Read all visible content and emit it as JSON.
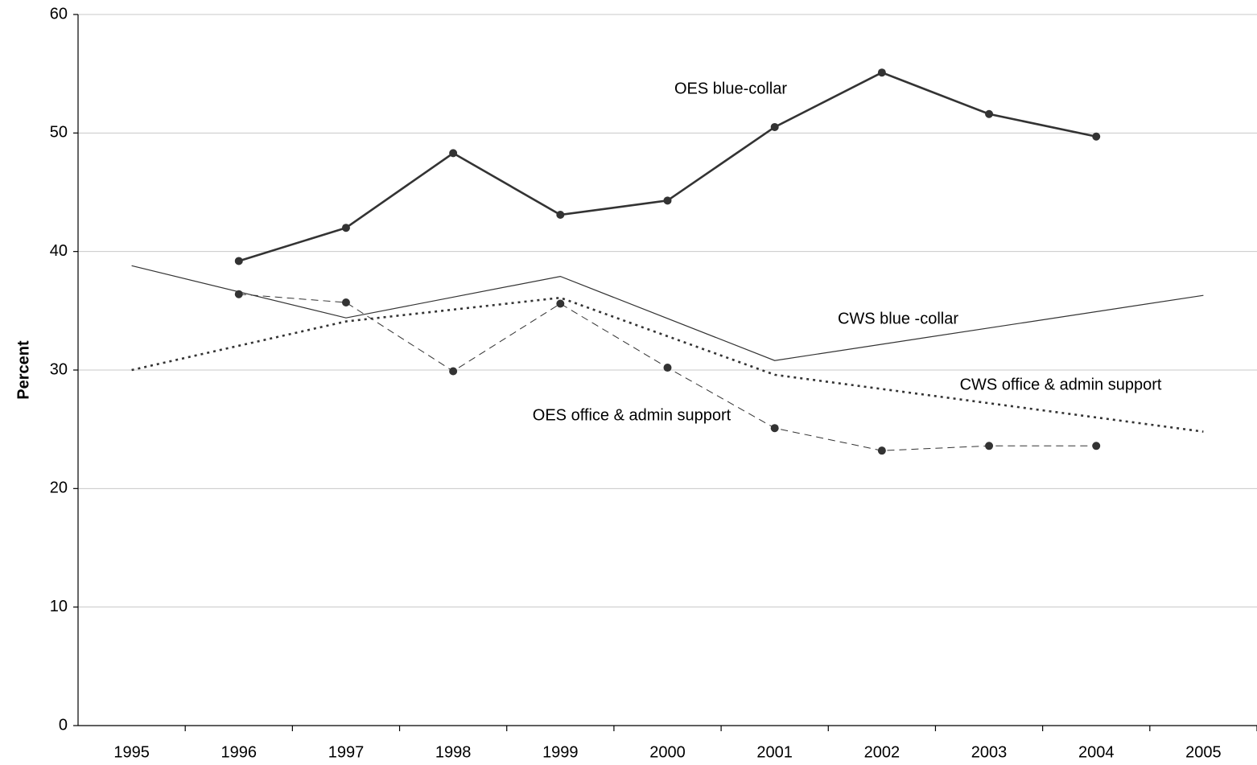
{
  "chart_data": {
    "type": "line",
    "y_label": "Percent",
    "xlim": [
      1994.5,
      2005.5
    ],
    "xticks": [
      1995,
      1996,
      1997,
      1998,
      1999,
      2000,
      2001,
      2002,
      2003,
      2004,
      2005
    ],
    "ylim": [
      0,
      60
    ],
    "yticks": [
      0,
      10,
      20,
      30,
      40,
      50,
      60
    ],
    "grid": true,
    "series": [
      {
        "name": "OES blue-collar",
        "color": "#333333",
        "style": "solid-bold",
        "markers": true,
        "x": [
          1996,
          1997,
          1998,
          1999,
          2000,
          2001,
          2002,
          2003,
          2004
        ],
        "values": [
          39.2,
          42.0,
          48.3,
          43.1,
          44.3,
          50.5,
          55.1,
          51.6,
          49.7
        ]
      },
      {
        "name": "CWS blue -collar",
        "color": "#333333",
        "style": "solid-thin",
        "markers": false,
        "x": [
          1995,
          1997,
          1999,
          2001,
          2005
        ],
        "values": [
          38.8,
          34.4,
          37.9,
          30.8,
          36.3
        ]
      },
      {
        "name": "CWS office & admin support",
        "color": "#333333",
        "style": "dotted",
        "markers": false,
        "x": [
          1995,
          1997,
          1999,
          2001,
          2005
        ],
        "values": [
          30.0,
          34.1,
          36.1,
          29.6,
          24.8
        ]
      },
      {
        "name": "OES office & admin support",
        "color": "#333333",
        "style": "dashed",
        "markers": true,
        "x": [
          1996,
          1997,
          1998,
          1999,
          2000,
          2001,
          2002,
          2003,
          2004
        ],
        "values": [
          36.4,
          35.7,
          29.9,
          35.6,
          30.2,
          25.1,
          23.2,
          23.6,
          23.6
        ]
      }
    ]
  }
}
